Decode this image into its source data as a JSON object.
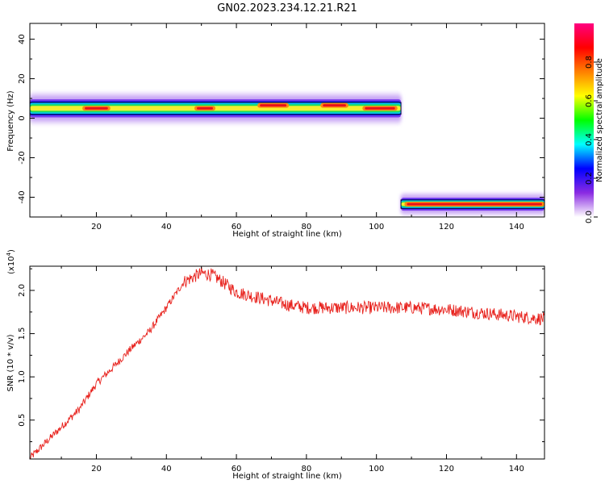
{
  "title": "GN02.2023.234.12.21.R21",
  "colors": {
    "series": "#e8231e",
    "axis": "#000000",
    "background": "#ffffff"
  },
  "chart_data": [
    {
      "type": "heatmap",
      "xlabel": "Height of straight line (km)",
      "ylabel": "Frequency (Hz)",
      "xlim": [
        1,
        148
      ],
      "ylim": [
        -50,
        48
      ],
      "xticks": [
        "20",
        "40",
        "60",
        "80",
        "100",
        "120",
        "140"
      ],
      "yticks": [
        "-40",
        "-20",
        "0",
        "20",
        "40"
      ],
      "colorbar": {
        "label": "Normalized spectral amplitude",
        "range": [
          0,
          1
        ],
        "ticks": [
          "0.0",
          "0.2",
          "0.4",
          "0.6",
          "0.8"
        ],
        "stops": [
          "#ffffff",
          "#8a2be2",
          "#0000ff",
          "#00ffff",
          "#00ff00",
          "#ffff00",
          "#ff8000",
          "#ff0000",
          "#ff0080"
        ]
      },
      "bands": [
        {
          "x_start": 1,
          "x_end": 107,
          "center_freq": 5,
          "halfwidth": 3.5,
          "hot_spots": [
            {
              "x": [
                16,
                24
              ],
              "freq": 5
            },
            {
              "x": [
                48,
                54
              ],
              "freq": 5
            },
            {
              "x": [
                66,
                75
              ],
              "freq": 6.5
            },
            {
              "x": [
                84,
                92
              ],
              "freq": 6.5
            },
            {
              "x": [
                96,
                106
              ],
              "freq": 5
            }
          ]
        },
        {
          "x_start": 107,
          "x_end": 148,
          "center_freq": -43.5,
          "halfwidth": 2.5,
          "hot_spots": [
            {
              "x": [
                108,
                148
              ],
              "freq": -43.5
            }
          ]
        }
      ]
    },
    {
      "type": "line",
      "xlabel": "Height of straight line (km)",
      "ylabel": "SNR (10 * v/v)",
      "multiplier_label": "(x10",
      "multiplier_exponent": "4",
      "xlim": [
        1,
        148
      ],
      "ylim": [
        0.05,
        2.28
      ],
      "xticks": [
        "20",
        "40",
        "60",
        "80",
        "100",
        "120",
        "140"
      ],
      "yticks": [
        "0.5",
        "1.0",
        "1.5",
        "2.0"
      ],
      "series": [
        {
          "x": [
            1,
            5,
            10,
            15,
            20,
            25,
            30,
            35,
            40,
            45,
            50,
            53,
            56,
            60,
            65,
            70,
            75,
            80,
            85,
            90,
            95,
            100,
            105,
            110,
            115,
            120,
            125,
            130,
            135,
            140,
            145,
            148
          ],
          "values": [
            0.06,
            0.22,
            0.42,
            0.62,
            0.92,
            1.12,
            1.33,
            1.52,
            1.8,
            2.1,
            2.2,
            2.18,
            2.1,
            1.98,
            1.93,
            1.88,
            1.83,
            1.8,
            1.8,
            1.8,
            1.8,
            1.8,
            1.8,
            1.8,
            1.79,
            1.78,
            1.76,
            1.74,
            1.72,
            1.7,
            1.68,
            1.67
          ]
        }
      ]
    }
  ]
}
